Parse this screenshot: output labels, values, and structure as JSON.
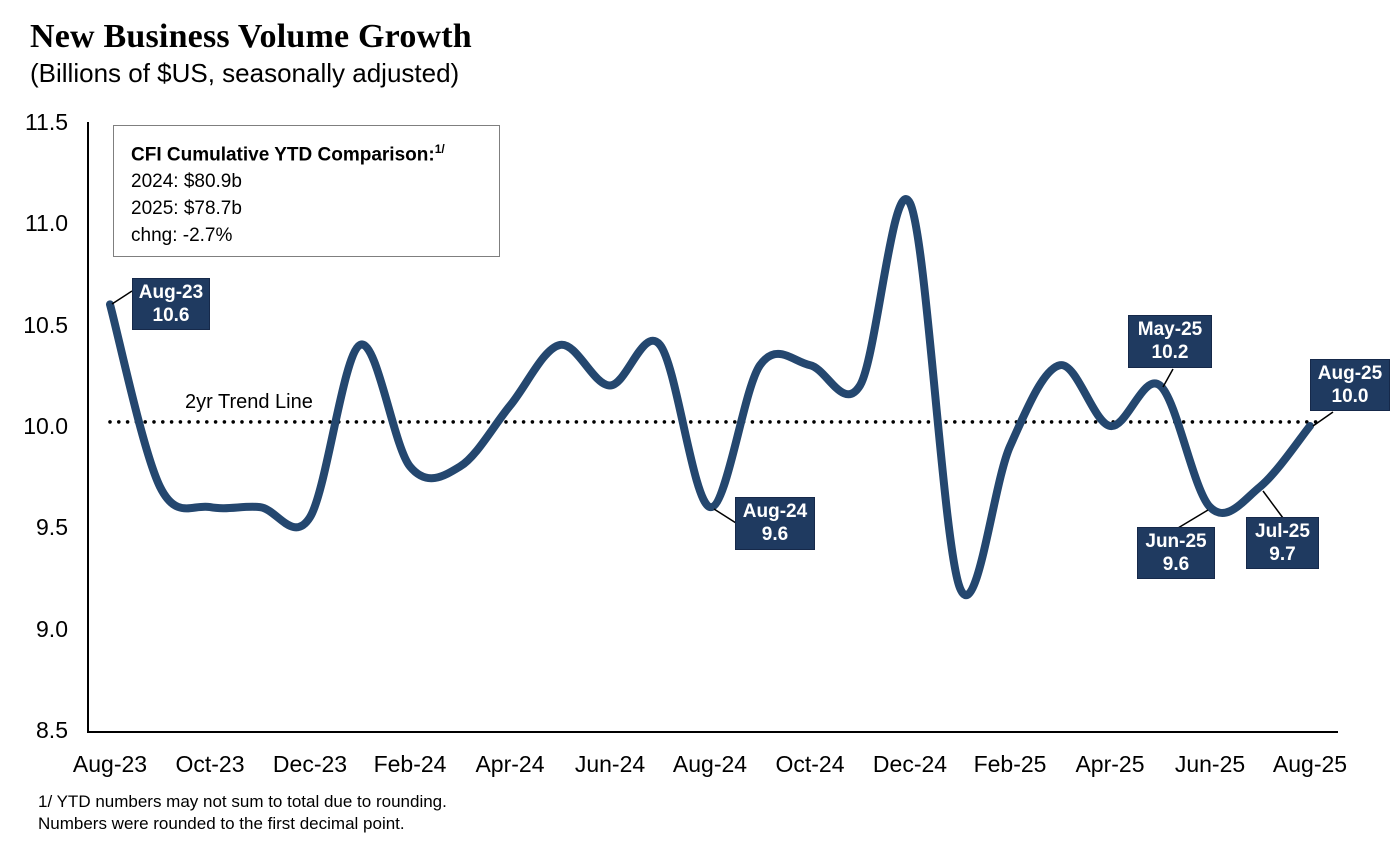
{
  "title": "New Business Volume Growth",
  "subtitle": "(Billions of $US, seasonally adjusted)",
  "info_box": {
    "heading": "CFI Cumulative YTD Comparison:",
    "heading_sup": "1/",
    "lines": [
      "2024: $80.9b",
      "2025: $78.7b",
      "chng: -2.7%"
    ]
  },
  "trend_label": "2yr Trend Line",
  "footnote": [
    "1/ YTD numbers may not sum to total due to rounding.",
    "Numbers were rounded to the first decimal point."
  ],
  "colors": {
    "line": "#24476F",
    "callout_bg": "#1F3A60",
    "trend_dots": "#000000",
    "axis": "#000000"
  },
  "chart_data": {
    "type": "line",
    "title": "New Business Volume Growth",
    "subtitle": "(Billions of $US, seasonally adjusted)",
    "x": [
      "Aug-23",
      "Sep-23",
      "Oct-23",
      "Nov-23",
      "Dec-23",
      "Jan-24",
      "Feb-24",
      "Mar-24",
      "Apr-24",
      "May-24",
      "Jun-24",
      "Jul-24",
      "Aug-24",
      "Sep-24",
      "Oct-24",
      "Nov-24",
      "Dec-24",
      "Jan-25",
      "Feb-25",
      "Mar-25",
      "Apr-25",
      "May-25",
      "Jun-25",
      "Jul-25",
      "Aug-25"
    ],
    "values": [
      10.6,
      9.7,
      9.6,
      9.6,
      9.55,
      10.4,
      9.8,
      9.8,
      10.1,
      10.4,
      10.2,
      10.4,
      9.6,
      10.3,
      10.3,
      10.2,
      11.1,
      9.2,
      9.9,
      10.3,
      10.0,
      10.2,
      9.6,
      9.7,
      10.0
    ],
    "trend_value": 10.02,
    "ylim": [
      8.5,
      11.5
    ],
    "grid": false,
    "legend": "none",
    "y_ticks": [
      "11.5",
      "11.0",
      "10.5",
      "10.0",
      "9.5",
      "9.0",
      "8.5"
    ],
    "x_ticks": [
      "Aug-23",
      "Oct-23",
      "Dec-23",
      "Feb-24",
      "Apr-24",
      "Jun-24",
      "Aug-24",
      "Oct-24",
      "Dec-24",
      "Feb-25",
      "Apr-25",
      "Jun-25",
      "Aug-25"
    ],
    "callouts": [
      {
        "label": "Aug-23",
        "value": "10.6"
      },
      {
        "label": "Aug-24",
        "value": "9.6"
      },
      {
        "label": "May-25",
        "value": "10.2"
      },
      {
        "label": "Jun-25",
        "value": "9.6"
      },
      {
        "label": "Jul-25",
        "value": "9.7"
      },
      {
        "label": "Aug-25",
        "value": "10.0"
      }
    ]
  }
}
